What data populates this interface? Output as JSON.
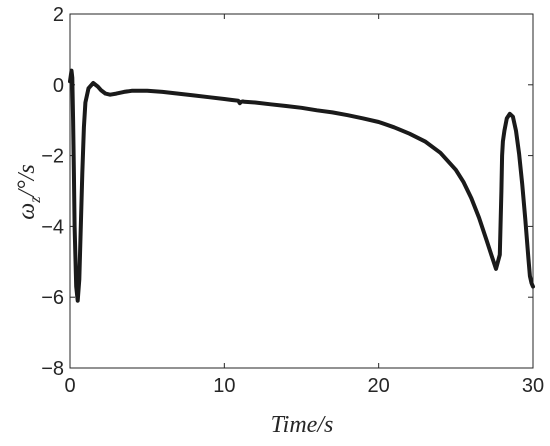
{
  "chart_data": {
    "type": "line",
    "title": "",
    "xlabel": "Time/s",
    "ylabel": "ωz/°/s",
    "ylabel_main": "ω",
    "ylabel_sub": "z",
    "ylabel_unit": "/°/s",
    "xlim": [
      0,
      30
    ],
    "ylim": [
      -8,
      2
    ],
    "xticks": [
      0,
      10,
      20,
      30
    ],
    "xtick_labels": [
      "0",
      "10",
      "20",
      "30"
    ],
    "yticks": [
      -8,
      -6,
      -4,
      -2,
      0,
      2
    ],
    "ytick_labels": [
      "−8",
      "−6",
      "−4",
      "−2",
      "0",
      "2"
    ],
    "grid": false,
    "line_color": "#1a1a1a",
    "series": [
      {
        "x": [
          0,
          0.1,
          0.15,
          0.2,
          0.25,
          0.3,
          0.4,
          0.5,
          0.6,
          0.7,
          0.8,
          0.9,
          1.0,
          1.2,
          1.5,
          1.8,
          2.0,
          2.3,
          2.6,
          3.0,
          3.5,
          4.0,
          5.0,
          6.0,
          7.0,
          8.0,
          9.0,
          10.0,
          10.5,
          10.9,
          11.0,
          11.1,
          11.2,
          11.3,
          12.0,
          13.0,
          14.0,
          15.0,
          16.0,
          17.0,
          18.0,
          19.0,
          20.0,
          21.0,
          22.0,
          23.0,
          24.0,
          25.0,
          25.5,
          26.0,
          26.5,
          27.0,
          27.3,
          27.6,
          27.85,
          27.95,
          28.0,
          28.05,
          28.15,
          28.3,
          28.5,
          28.7,
          28.9,
          29.1,
          29.3,
          29.5,
          29.7,
          29.8,
          29.85,
          29.9,
          29.95,
          30.0
        ],
        "y": [
          0.1,
          0.4,
          0.2,
          -1.0,
          -2.5,
          -4.0,
          -5.7,
          -6.1,
          -5.5,
          -4.0,
          -2.5,
          -1.2,
          -0.5,
          -0.1,
          0.05,
          -0.05,
          -0.15,
          -0.25,
          -0.28,
          -0.25,
          -0.2,
          -0.17,
          -0.17,
          -0.2,
          -0.25,
          -0.3,
          -0.35,
          -0.4,
          -0.43,
          -0.45,
          -0.52,
          -0.48,
          -0.47,
          -0.48,
          -0.5,
          -0.55,
          -0.6,
          -0.65,
          -0.72,
          -0.78,
          -0.86,
          -0.95,
          -1.05,
          -1.2,
          -1.38,
          -1.6,
          -1.92,
          -2.4,
          -2.75,
          -3.2,
          -3.75,
          -4.4,
          -4.8,
          -5.2,
          -4.8,
          -3.0,
          -2.0,
          -1.6,
          -1.3,
          -0.95,
          -0.82,
          -0.9,
          -1.3,
          -1.95,
          -2.8,
          -3.8,
          -4.9,
          -5.4,
          -5.5,
          -5.6,
          -5.65,
          -5.7
        ]
      }
    ]
  }
}
